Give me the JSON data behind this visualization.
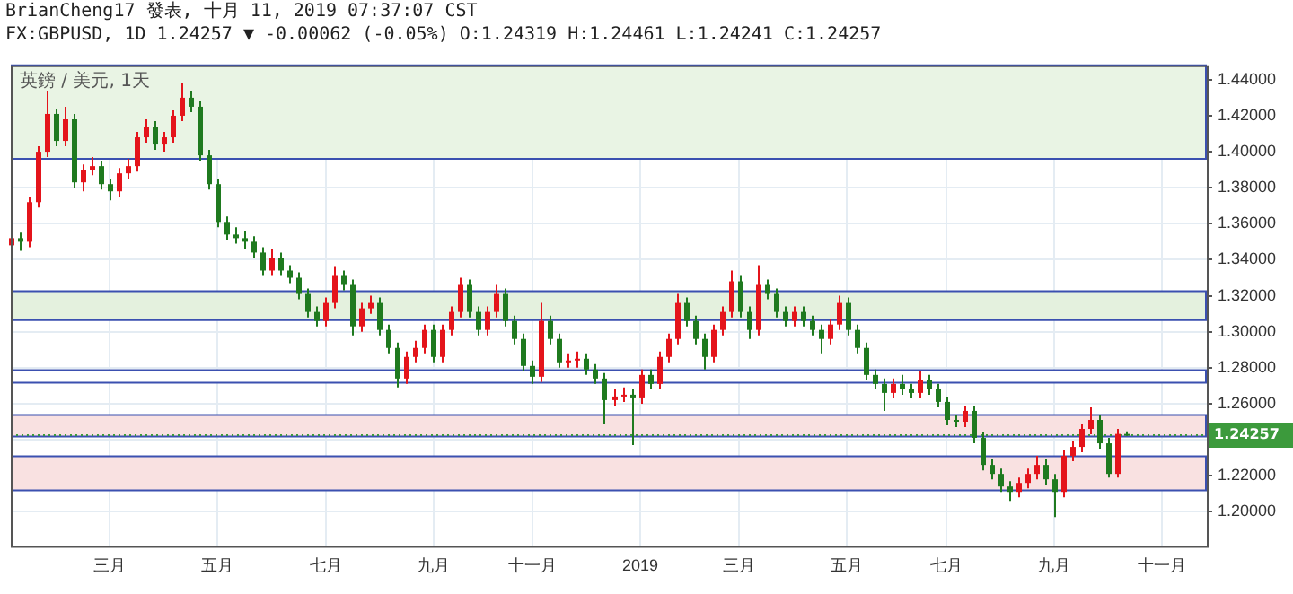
{
  "chart_data": {
    "type": "candlestick",
    "title": "BrianCheng17 發表, 十月 11, 2019 07:37:07 CST",
    "subtitle": "FX:GBPUSD, 1D 1.24257 ▼ -0.00062 (-0.05%) O:1.24319 H:1.24461 L:1.24241 C:1.24257",
    "annotations": [
      "英鎊 / 美元, 1天"
    ],
    "categories": [
      null,
      null,
      null,
      null,
      null,
      null,
      null,
      null,
      null,
      null,
      null,
      "三月",
      null,
      null,
      null,
      null,
      null,
      null,
      null,
      null,
      null,
      null,
      null,
      "五月",
      null,
      null,
      null,
      null,
      null,
      null,
      null,
      null,
      null,
      null,
      null,
      "七月",
      null,
      null,
      null,
      null,
      null,
      null,
      null,
      null,
      null,
      null,
      null,
      "九月",
      null,
      null,
      null,
      null,
      null,
      null,
      null,
      null,
      null,
      null,
      "十一月",
      null,
      null,
      null,
      null,
      null,
      null,
      null,
      null,
      null,
      null,
      null,
      "2019",
      null,
      null,
      null,
      null,
      null,
      null,
      null,
      null,
      null,
      null,
      "三月",
      null,
      null,
      null,
      null,
      null,
      null,
      null,
      null,
      null,
      null,
      null,
      "五月",
      null,
      null,
      null,
      null,
      null,
      null,
      null,
      null,
      null,
      null,
      "七月",
      null,
      null,
      null,
      null,
      null,
      null,
      null,
      null,
      null,
      null,
      null,
      "九月",
      null,
      null,
      null,
      null,
      null,
      null,
      null,
      null,
      null,
      null,
      null,
      "十一月",
      null,
      null,
      null,
      null,
      null
    ],
    "ohlc": [
      [
        1.348,
        1.355,
        1.345,
        1.352
      ],
      [
        1.352,
        1.355,
        1.345,
        1.35
      ],
      [
        1.35,
        1.375,
        1.347,
        1.372
      ],
      [
        1.372,
        1.403,
        1.369,
        1.4
      ],
      [
        1.4,
        1.434,
        1.397,
        1.421
      ],
      [
        1.421,
        1.424,
        1.403,
        1.406
      ],
      [
        1.406,
        1.425,
        1.403,
        1.418
      ],
      [
        1.418,
        1.421,
        1.38,
        1.383
      ],
      [
        1.383,
        1.393,
        1.378,
        1.39
      ],
      [
        1.39,
        1.397,
        1.387,
        1.392
      ],
      [
        1.392,
        1.395,
        1.379,
        1.382
      ],
      [
        1.382,
        1.385,
        1.373,
        1.378
      ],
      [
        1.378,
        1.391,
        1.375,
        1.388
      ],
      [
        1.388,
        1.396,
        1.385,
        1.392
      ],
      [
        1.392,
        1.411,
        1.389,
        1.408
      ],
      [
        1.408,
        1.418,
        1.405,
        1.414
      ],
      [
        1.414,
        1.417,
        1.401,
        1.404
      ],
      [
        1.404,
        1.411,
        1.4,
        1.408
      ],
      [
        1.408,
        1.423,
        1.405,
        1.42
      ],
      [
        1.42,
        1.438,
        1.417,
        1.43
      ],
      [
        1.43,
        1.434,
        1.422,
        1.425
      ],
      [
        1.425,
        1.428,
        1.395,
        1.398
      ],
      [
        1.398,
        1.401,
        1.379,
        1.382
      ],
      [
        1.382,
        1.385,
        1.358,
        1.361
      ],
      [
        1.361,
        1.364,
        1.351,
        1.354
      ],
      [
        1.354,
        1.358,
        1.349,
        1.352
      ],
      [
        1.352,
        1.356,
        1.346,
        1.35
      ],
      [
        1.35,
        1.353,
        1.341,
        1.344
      ],
      [
        1.344,
        1.347,
        1.331,
        1.334
      ],
      [
        1.334,
        1.346,
        1.331,
        1.341
      ],
      [
        1.341,
        1.344,
        1.331,
        1.334
      ],
      [
        1.334,
        1.337,
        1.327,
        1.33
      ],
      [
        1.33,
        1.333,
        1.318,
        1.321
      ],
      [
        1.321,
        1.324,
        1.308,
        1.311
      ],
      [
        1.311,
        1.314,
        1.303,
        1.306
      ],
      [
        1.306,
        1.319,
        1.303,
        1.316
      ],
      [
        1.316,
        1.336,
        1.313,
        1.331
      ],
      [
        1.331,
        1.334,
        1.323,
        1.326
      ],
      [
        1.326,
        1.329,
        1.298,
        1.303
      ],
      [
        1.303,
        1.316,
        1.3,
        1.313
      ],
      [
        1.313,
        1.32,
        1.31,
        1.316
      ],
      [
        1.316,
        1.319,
        1.298,
        1.301
      ],
      [
        1.301,
        1.304,
        1.288,
        1.291
      ],
      [
        1.291,
        1.294,
        1.269,
        1.274
      ],
      [
        1.274,
        1.289,
        1.271,
        1.286
      ],
      [
        1.286,
        1.295,
        1.283,
        1.291
      ],
      [
        1.291,
        1.304,
        1.288,
        1.301
      ],
      [
        1.301,
        1.304,
        1.283,
        1.286
      ],
      [
        1.286,
        1.304,
        1.283,
        1.301
      ],
      [
        1.301,
        1.314,
        1.298,
        1.311
      ],
      [
        1.311,
        1.33,
        1.308,
        1.326
      ],
      [
        1.326,
        1.329,
        1.308,
        1.311
      ],
      [
        1.311,
        1.314,
        1.298,
        1.301
      ],
      [
        1.301,
        1.314,
        1.298,
        1.311
      ],
      [
        1.311,
        1.326,
        1.308,
        1.321
      ],
      [
        1.321,
        1.324,
        1.303,
        1.306
      ],
      [
        1.306,
        1.309,
        1.293,
        1.296
      ],
      [
        1.296,
        1.299,
        1.278,
        1.281
      ],
      [
        1.281,
        1.284,
        1.271,
        1.275
      ],
      [
        1.275,
        1.316,
        1.272,
        1.306
      ],
      [
        1.306,
        1.309,
        1.293,
        1.296
      ],
      [
        1.296,
        1.299,
        1.28,
        1.283
      ],
      [
        1.283,
        1.288,
        1.28,
        1.284
      ],
      [
        1.284,
        1.289,
        1.28,
        1.285
      ],
      [
        1.285,
        1.288,
        1.276,
        1.279
      ],
      [
        1.279,
        1.282,
        1.271,
        1.274
      ],
      [
        1.274,
        1.277,
        1.249,
        1.262
      ],
      [
        1.262,
        1.268,
        1.259,
        1.264
      ],
      [
        1.264,
        1.269,
        1.261,
        1.265
      ],
      [
        1.265,
        1.268,
        1.237,
        1.263
      ],
      [
        1.263,
        1.279,
        1.26,
        1.276
      ],
      [
        1.276,
        1.279,
        1.268,
        1.271
      ],
      [
        1.271,
        1.289,
        1.268,
        1.286
      ],
      [
        1.286,
        1.299,
        1.283,
        1.296
      ],
      [
        1.296,
        1.321,
        1.293,
        1.316
      ],
      [
        1.316,
        1.319,
        1.303,
        1.306
      ],
      [
        1.306,
        1.309,
        1.293,
        1.296
      ],
      [
        1.296,
        1.299,
        1.279,
        1.286
      ],
      [
        1.286,
        1.304,
        1.283,
        1.301
      ],
      [
        1.301,
        1.314,
        1.298,
        1.311
      ],
      [
        1.311,
        1.334,
        1.308,
        1.328
      ],
      [
        1.328,
        1.331,
        1.308,
        1.311
      ],
      [
        1.311,
        1.314,
        1.296,
        1.301
      ],
      [
        1.301,
        1.337,
        1.298,
        1.326
      ],
      [
        1.326,
        1.329,
        1.318,
        1.321
      ],
      [
        1.321,
        1.324,
        1.308,
        1.311
      ],
      [
        1.311,
        1.314,
        1.303,
        1.306
      ],
      [
        1.306,
        1.314,
        1.303,
        1.311
      ],
      [
        1.311,
        1.314,
        1.303,
        1.306
      ],
      [
        1.306,
        1.309,
        1.298,
        1.301
      ],
      [
        1.301,
        1.304,
        1.288,
        1.296
      ],
      [
        1.296,
        1.307,
        1.293,
        1.304
      ],
      [
        1.304,
        1.32,
        1.301,
        1.316
      ],
      [
        1.316,
        1.319,
        1.298,
        1.301
      ],
      [
        1.301,
        1.304,
        1.288,
        1.291
      ],
      [
        1.291,
        1.294,
        1.273,
        1.276
      ],
      [
        1.276,
        1.279,
        1.268,
        1.271
      ],
      [
        1.271,
        1.274,
        1.256,
        1.266
      ],
      [
        1.266,
        1.274,
        1.263,
        1.271
      ],
      [
        1.271,
        1.276,
        1.265,
        1.268
      ],
      [
        1.268,
        1.271,
        1.263,
        1.266
      ],
      [
        1.266,
        1.278,
        1.263,
        1.273
      ],
      [
        1.273,
        1.276,
        1.265,
        1.268
      ],
      [
        1.268,
        1.271,
        1.258,
        1.261
      ],
      [
        1.261,
        1.264,
        1.248,
        1.251
      ],
      [
        1.251,
        1.254,
        1.247,
        1.25
      ],
      [
        1.25,
        1.259,
        1.247,
        1.256
      ],
      [
        1.256,
        1.259,
        1.238,
        1.241
      ],
      [
        1.241,
        1.244,
        1.223,
        1.226
      ],
      [
        1.226,
        1.229,
        1.218,
        1.221
      ],
      [
        1.221,
        1.224,
        1.211,
        1.214
      ],
      [
        1.214,
        1.217,
        1.206,
        1.211
      ],
      [
        1.211,
        1.219,
        1.208,
        1.216
      ],
      [
        1.216,
        1.224,
        1.213,
        1.221
      ],
      [
        1.221,
        1.231,
        1.218,
        1.226
      ],
      [
        1.226,
        1.229,
        1.215,
        1.218
      ],
      [
        1.218,
        1.221,
        1.197,
        1.211
      ],
      [
        1.211,
        1.234,
        1.208,
        1.231
      ],
      [
        1.231,
        1.239,
        1.228,
        1.236
      ],
      [
        1.236,
        1.249,
        1.233,
        1.246
      ],
      [
        1.246,
        1.258,
        1.243,
        1.251
      ],
      [
        1.251,
        1.254,
        1.235,
        1.238
      ],
      [
        1.238,
        1.241,
        1.219,
        1.221
      ],
      [
        1.221,
        1.246,
        1.219,
        1.24319
      ],
      [
        1.24319,
        1.24461,
        1.24241,
        1.24257
      ],
      null,
      null,
      null,
      null,
      null,
      null,
      null,
      null,
      null
    ],
    "colors": [
      "#e4141b",
      "#1f7a1f",
      "#e4141b",
      "#e4141b",
      "#e4141b",
      "#1f7a1f",
      "#e4141b",
      "#1f7a1f",
      "#e4141b",
      "#e4141b",
      "#1f7a1f",
      "#1f7a1f",
      "#e4141b",
      "#e4141b",
      "#e4141b",
      "#e4141b",
      "#1f7a1f",
      "#e4141b",
      "#e4141b",
      "#e4141b",
      "#1f7a1f",
      "#1f7a1f",
      "#1f7a1f",
      "#1f7a1f",
      "#1f7a1f",
      "#1f7a1f",
      "#1f7a1f",
      "#1f7a1f",
      "#1f7a1f",
      "#e4141b",
      "#1f7a1f",
      "#1f7a1f",
      "#1f7a1f",
      "#1f7a1f",
      "#1f7a1f",
      "#e4141b",
      "#e4141b",
      "#1f7a1f",
      "#1f7a1f",
      "#e4141b",
      "#e4141b",
      "#1f7a1f",
      "#1f7a1f",
      "#1f7a1f",
      "#e4141b",
      "#e4141b",
      "#e4141b",
      "#1f7a1f",
      "#e4141b",
      "#e4141b",
      "#e4141b",
      "#1f7a1f",
      "#1f7a1f",
      "#e4141b",
      "#e4141b",
      "#1f7a1f",
      "#1f7a1f",
      "#1f7a1f",
      "#1f7a1f",
      "#e4141b",
      "#1f7a1f",
      "#1f7a1f",
      "#e4141b",
      "#e4141b",
      "#1f7a1f",
      "#1f7a1f",
      "#1f7a1f",
      "#e4141b",
      "#e4141b",
      "#1f7a1f",
      "#e4141b",
      "#1f7a1f",
      "#e4141b",
      "#e4141b",
      "#e4141b",
      "#1f7a1f",
      "#1f7a1f",
      "#1f7a1f",
      "#e4141b",
      "#e4141b",
      "#e4141b",
      "#1f7a1f",
      "#1f7a1f",
      "#e4141b",
      "#1f7a1f",
      "#1f7a1f",
      "#1f7a1f",
      "#e4141b",
      "#1f7a1f",
      "#1f7a1f",
      "#1f7a1f",
      "#e4141b",
      "#e4141b",
      "#1f7a1f",
      "#1f7a1f",
      "#1f7a1f",
      "#1f7a1f",
      "#1f7a1f",
      "#e4141b",
      "#1f7a1f",
      "#1f7a1f",
      "#e4141b",
      "#1f7a1f",
      "#1f7a1f",
      "#1f7a1f",
      "#1f7a1f",
      "#e4141b",
      "#1f7a1f",
      "#1f7a1f",
      "#1f7a1f",
      "#1f7a1f",
      "#1f7a1f",
      "#e4141b",
      "#e4141b",
      "#e4141b",
      "#1f7a1f",
      "#1f7a1f",
      "#e4141b",
      "#e4141b",
      "#e4141b",
      "#e4141b",
      "#1f7a1f",
      "#1f7a1f",
      "#e4141b",
      "#1f7a1f",
      null,
      null,
      null,
      null,
      null,
      null,
      null,
      null,
      null
    ],
    "ylim": [
      1.181,
      1.448
    ],
    "yticks": [
      {
        "value": 1.2,
        "label": "1.20000"
      },
      {
        "value": 1.22,
        "label": "1.22000"
      },
      {
        "value": 1.24,
        "label": null
      },
      {
        "value": 1.26,
        "label": "1.26000"
      },
      {
        "value": 1.28,
        "label": "1.28000"
      },
      {
        "value": 1.3,
        "label": "1.30000"
      },
      {
        "value": 1.32,
        "label": "1.32000"
      },
      {
        "value": 1.34,
        "label": "1.34000"
      },
      {
        "value": 1.36,
        "label": "1.36000"
      },
      {
        "value": 1.38,
        "label": "1.38000"
      },
      {
        "value": 1.4,
        "label": "1.40000"
      },
      {
        "value": 1.42,
        "label": "1.42000"
      },
      {
        "value": 1.44,
        "label": "1.44000"
      }
    ],
    "grid": true,
    "bands": [
      {
        "axis": "y",
        "from": 1.396,
        "to": 1.448,
        "color": "#e9f4e4"
      },
      {
        "axis": "y",
        "from": 1.3065,
        "to": 1.3225,
        "color": "#e4f1de"
      },
      {
        "axis": "y",
        "from": 1.2717,
        "to": 1.2787,
        "color": "#ffffff"
      },
      {
        "axis": "y",
        "from": 1.2418,
        "to": 1.2537,
        "color": "#f9e1e1"
      },
      {
        "axis": "y",
        "from": 1.2119,
        "to": 1.2308,
        "color": "#f9e1e1"
      }
    ],
    "ref_lines": [
      {
        "axis": "y",
        "value": 1.24257,
        "label": "1.24257",
        "color": "#3c9a3c",
        "line_style": "dotted"
      }
    ]
  }
}
